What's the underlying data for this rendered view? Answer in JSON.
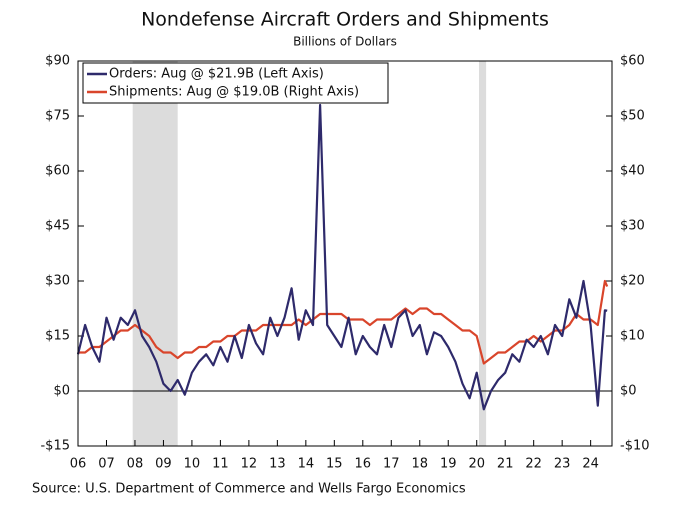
{
  "chart_data": {
    "type": "line",
    "title": "Nondefense Aircraft Orders and Shipments",
    "subtitle": "Billions of Dollars",
    "source": "Source: U.S. Department of Commerce and Wells Fargo Economics",
    "x": [
      2006,
      2006.25,
      2006.5,
      2006.75,
      2007,
      2007.25,
      2007.5,
      2007.75,
      2008,
      2008.25,
      2008.5,
      2008.75,
      2009,
      2009.25,
      2009.5,
      2009.75,
      2010,
      2010.25,
      2010.5,
      2010.75,
      2011,
      2011.25,
      2011.5,
      2011.75,
      2012,
      2012.25,
      2012.5,
      2012.75,
      2013,
      2013.25,
      2013.5,
      2013.75,
      2014,
      2014.25,
      2014.5,
      2014.75,
      2015,
      2015.25,
      2015.5,
      2015.75,
      2016,
      2016.25,
      2016.5,
      2016.75,
      2017,
      2017.25,
      2017.5,
      2017.75,
      2018,
      2018.25,
      2018.5,
      2018.75,
      2019,
      2019.25,
      2019.5,
      2019.75,
      2020,
      2020.25,
      2020.5,
      2020.75,
      2021,
      2021.25,
      2021.5,
      2021.75,
      2022,
      2022.25,
      2022.5,
      2022.75,
      2023,
      2023.25,
      2023.5,
      2023.75,
      2024,
      2024.25,
      2024.5,
      2024.58
    ],
    "series": [
      {
        "name": "Orders: Aug @ $21.9B (Left Axis)",
        "color": "#2e2a6b",
        "axis": "y",
        "values": [
          10,
          18,
          12,
          8,
          20,
          14,
          20,
          18,
          22,
          15,
          12,
          8,
          2,
          0,
          3,
          -1,
          5,
          8,
          10,
          7,
          12,
          8,
          15,
          9,
          18,
          13,
          10,
          20,
          15,
          20,
          28,
          14,
          22,
          18,
          78,
          18,
          15,
          12,
          20,
          10,
          15,
          12,
          10,
          18,
          12,
          20,
          22,
          15,
          18,
          10,
          16,
          15,
          12,
          8,
          2,
          -2,
          5,
          -5,
          0,
          3,
          5,
          10,
          8,
          14,
          12,
          15,
          10,
          18,
          15,
          25,
          20,
          30,
          18,
          -4,
          22,
          21.9
        ]
      },
      {
        "name": "Shipments: Aug @ $19.0B (Right Axis)",
        "color": "#d9452b",
        "axis": "y2",
        "values": [
          7,
          7,
          8,
          8,
          9,
          10,
          11,
          11,
          12,
          11,
          10,
          8,
          7,
          7,
          6,
          7,
          7,
          8,
          8,
          9,
          9,
          10,
          10,
          11,
          11,
          11,
          12,
          12,
          12,
          12,
          12,
          13,
          12,
          13,
          14,
          14,
          14,
          14,
          13,
          13,
          13,
          12,
          13,
          13,
          13,
          14,
          15,
          14,
          15,
          15,
          14,
          14,
          13,
          12,
          11,
          11,
          10,
          5,
          6,
          7,
          7,
          8,
          9,
          9,
          10,
          9,
          10,
          11,
          11,
          12,
          14,
          13,
          13,
          12,
          20,
          19.0
        ]
      }
    ],
    "recessions": [
      [
        2007.92,
        2009.5
      ],
      [
        2020.08,
        2020.33
      ]
    ],
    "xlim": [
      2006,
      2024.75
    ],
    "xticks": [
      {
        "value": 2006,
        "label": "06"
      },
      {
        "value": 2007,
        "label": "07"
      },
      {
        "value": 2008,
        "label": "08"
      },
      {
        "value": 2009,
        "label": "09"
      },
      {
        "value": 2010,
        "label": "10"
      },
      {
        "value": 2011,
        "label": "11"
      },
      {
        "value": 2012,
        "label": "12"
      },
      {
        "value": 2013,
        "label": "13"
      },
      {
        "value": 2014,
        "label": "14"
      },
      {
        "value": 2015,
        "label": "15"
      },
      {
        "value": 2016,
        "label": "16"
      },
      {
        "value": 2017,
        "label": "17"
      },
      {
        "value": 2018,
        "label": "18"
      },
      {
        "value": 2019,
        "label": "19"
      },
      {
        "value": 2020,
        "label": "20"
      },
      {
        "value": 2021,
        "label": "21"
      },
      {
        "value": 2022,
        "label": "22"
      },
      {
        "value": 2023,
        "label": "23"
      },
      {
        "value": 2024,
        "label": "24"
      }
    ],
    "ylim": [
      -15,
      90
    ],
    "yticks": [
      {
        "value": -15,
        "label": "-$15"
      },
      {
        "value": 0,
        "label": "$0"
      },
      {
        "value": 15,
        "label": "$15"
      },
      {
        "value": 30,
        "label": "$30"
      },
      {
        "value": 45,
        "label": "$45"
      },
      {
        "value": 60,
        "label": "$60"
      },
      {
        "value": 75,
        "label": "$75"
      },
      {
        "value": 90,
        "label": "$90"
      }
    ],
    "y2lim": [
      -10,
      60
    ],
    "y2ticks": [
      {
        "value": -10,
        "label": "-$10"
      },
      {
        "value": 0,
        "label": "$0"
      },
      {
        "value": 10,
        "label": "$10"
      },
      {
        "value": 20,
        "label": "$20"
      },
      {
        "value": 30,
        "label": "$30"
      },
      {
        "value": 40,
        "label": "$40"
      },
      {
        "value": 50,
        "label": "$50"
      },
      {
        "value": 60,
        "label": "$60"
      }
    ],
    "legend": "upper left"
  }
}
